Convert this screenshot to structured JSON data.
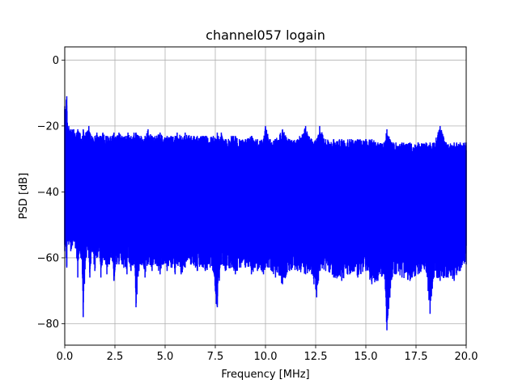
{
  "chart_data": {
    "type": "line",
    "title": "channel057 logain",
    "xlabel": "Frequency [MHz]",
    "ylabel": "PSD [dB]",
    "xlim": [
      0,
      20
    ],
    "ylim": [
      -86.5,
      4
    ],
    "grid": true,
    "line_color": "#0000ff",
    "x_ticks": [
      0,
      2.5,
      5,
      7.5,
      10,
      12.5,
      15,
      17.5,
      20
    ],
    "x_tick_labels": [
      "0.0",
      "2.5",
      "5.0",
      "7.5",
      "10.0",
      "12.5",
      "15.0",
      "17.5",
      "20.0"
    ],
    "y_ticks": [
      0,
      -20,
      -40,
      -60,
      -80
    ],
    "y_tick_labels": [
      "0",
      "−20",
      "−40",
      "−60",
      "−80"
    ],
    "series": [
      {
        "x": [
          0.0,
          0.03,
          0.08,
          0.1,
          0.13,
          0.16,
          0.2,
          0.3,
          0.45,
          0.6,
          0.65,
          0.75,
          0.88,
          0.92,
          1.05,
          1.2,
          1.25,
          1.35,
          1.5,
          1.6,
          1.75,
          1.8,
          1.9,
          2.05,
          2.1,
          2.35,
          2.45,
          2.6,
          2.7,
          2.85,
          3.1,
          3.15,
          3.3,
          3.45,
          3.55,
          3.7,
          3.8,
          4.0,
          4.15,
          4.35,
          4.5,
          4.75,
          4.85,
          5.1,
          5.3,
          5.5,
          5.6,
          5.8,
          6.0,
          6.3,
          6.6,
          6.9,
          7.0,
          7.4,
          7.55,
          7.6,
          7.65,
          7.7,
          7.8,
          8.0,
          8.3,
          8.5,
          8.7,
          9.0,
          9.3,
          9.6,
          9.9,
          10.0,
          10.2,
          10.5,
          10.85,
          11.2,
          11.6,
          12.0,
          12.3,
          12.55,
          12.7,
          13.0,
          13.4,
          13.8,
          14.2,
          14.6,
          15.0,
          15.3,
          15.6,
          15.9,
          16.05,
          16.3,
          16.5,
          16.8,
          17.2,
          17.6,
          18.0,
          18.2,
          18.4,
          18.7,
          19.0,
          19.4,
          19.7,
          20.0
        ],
        "ymax": [
          -14,
          -16,
          -12,
          -11,
          -19,
          -22,
          -20,
          -21,
          -21,
          -22,
          -21,
          -22,
          -23,
          -21,
          -22,
          -20,
          -22,
          -23,
          -23,
          -22,
          -23,
          -23,
          -22,
          -23,
          -23,
          -23,
          -22,
          -23,
          -22,
          -23,
          -23,
          -22,
          -23,
          -22,
          -22,
          -23,
          -23,
          -23,
          -21,
          -23,
          -23,
          -22,
          -23,
          -23,
          -23,
          -23,
          -22,
          -23,
          -22,
          -23,
          -23,
          -23,
          -23,
          -23,
          -24,
          -22,
          -23,
          -24,
          -22,
          -24,
          -23,
          -23,
          -24,
          -24,
          -23,
          -24,
          -24,
          -20,
          -24,
          -24,
          -21,
          -24,
          -24,
          -20,
          -24,
          -24,
          -20,
          -24,
          -24,
          -24,
          -24,
          -24,
          -24,
          -24,
          -25,
          -25,
          -21,
          -25,
          -25,
          -25,
          -25,
          -25,
          -25,
          -25,
          -25,
          -20,
          -25,
          -25,
          -25,
          -25
        ],
        "ymin": [
          -58,
          -55,
          -60,
          -63,
          -54,
          -55,
          -56,
          -58,
          -55,
          -60,
          -66,
          -58,
          -65,
          -78,
          -60,
          -60,
          -66,
          -58,
          -64,
          -60,
          -60,
          -66,
          -60,
          -62,
          -65,
          -60,
          -67,
          -62,
          -62,
          -62,
          -65,
          -60,
          -64,
          -62,
          -75,
          -64,
          -62,
          -66,
          -62,
          -64,
          -62,
          -65,
          -62,
          -64,
          -63,
          -65,
          -62,
          -65,
          -63,
          -62,
          -64,
          -63,
          -64,
          -64,
          -74,
          -75,
          -66,
          -67,
          -62,
          -64,
          -63,
          -65,
          -63,
          -63,
          -65,
          -64,
          -65,
          -63,
          -63,
          -66,
          -68,
          -64,
          -64,
          -65,
          -65,
          -72,
          -64,
          -64,
          -66,
          -67,
          -65,
          -66,
          -64,
          -68,
          -67,
          -65,
          -82,
          -66,
          -65,
          -66,
          -67,
          -65,
          -64,
          -77,
          -66,
          -67,
          -66,
          -67,
          -64,
          -62
        ]
      }
    ]
  }
}
